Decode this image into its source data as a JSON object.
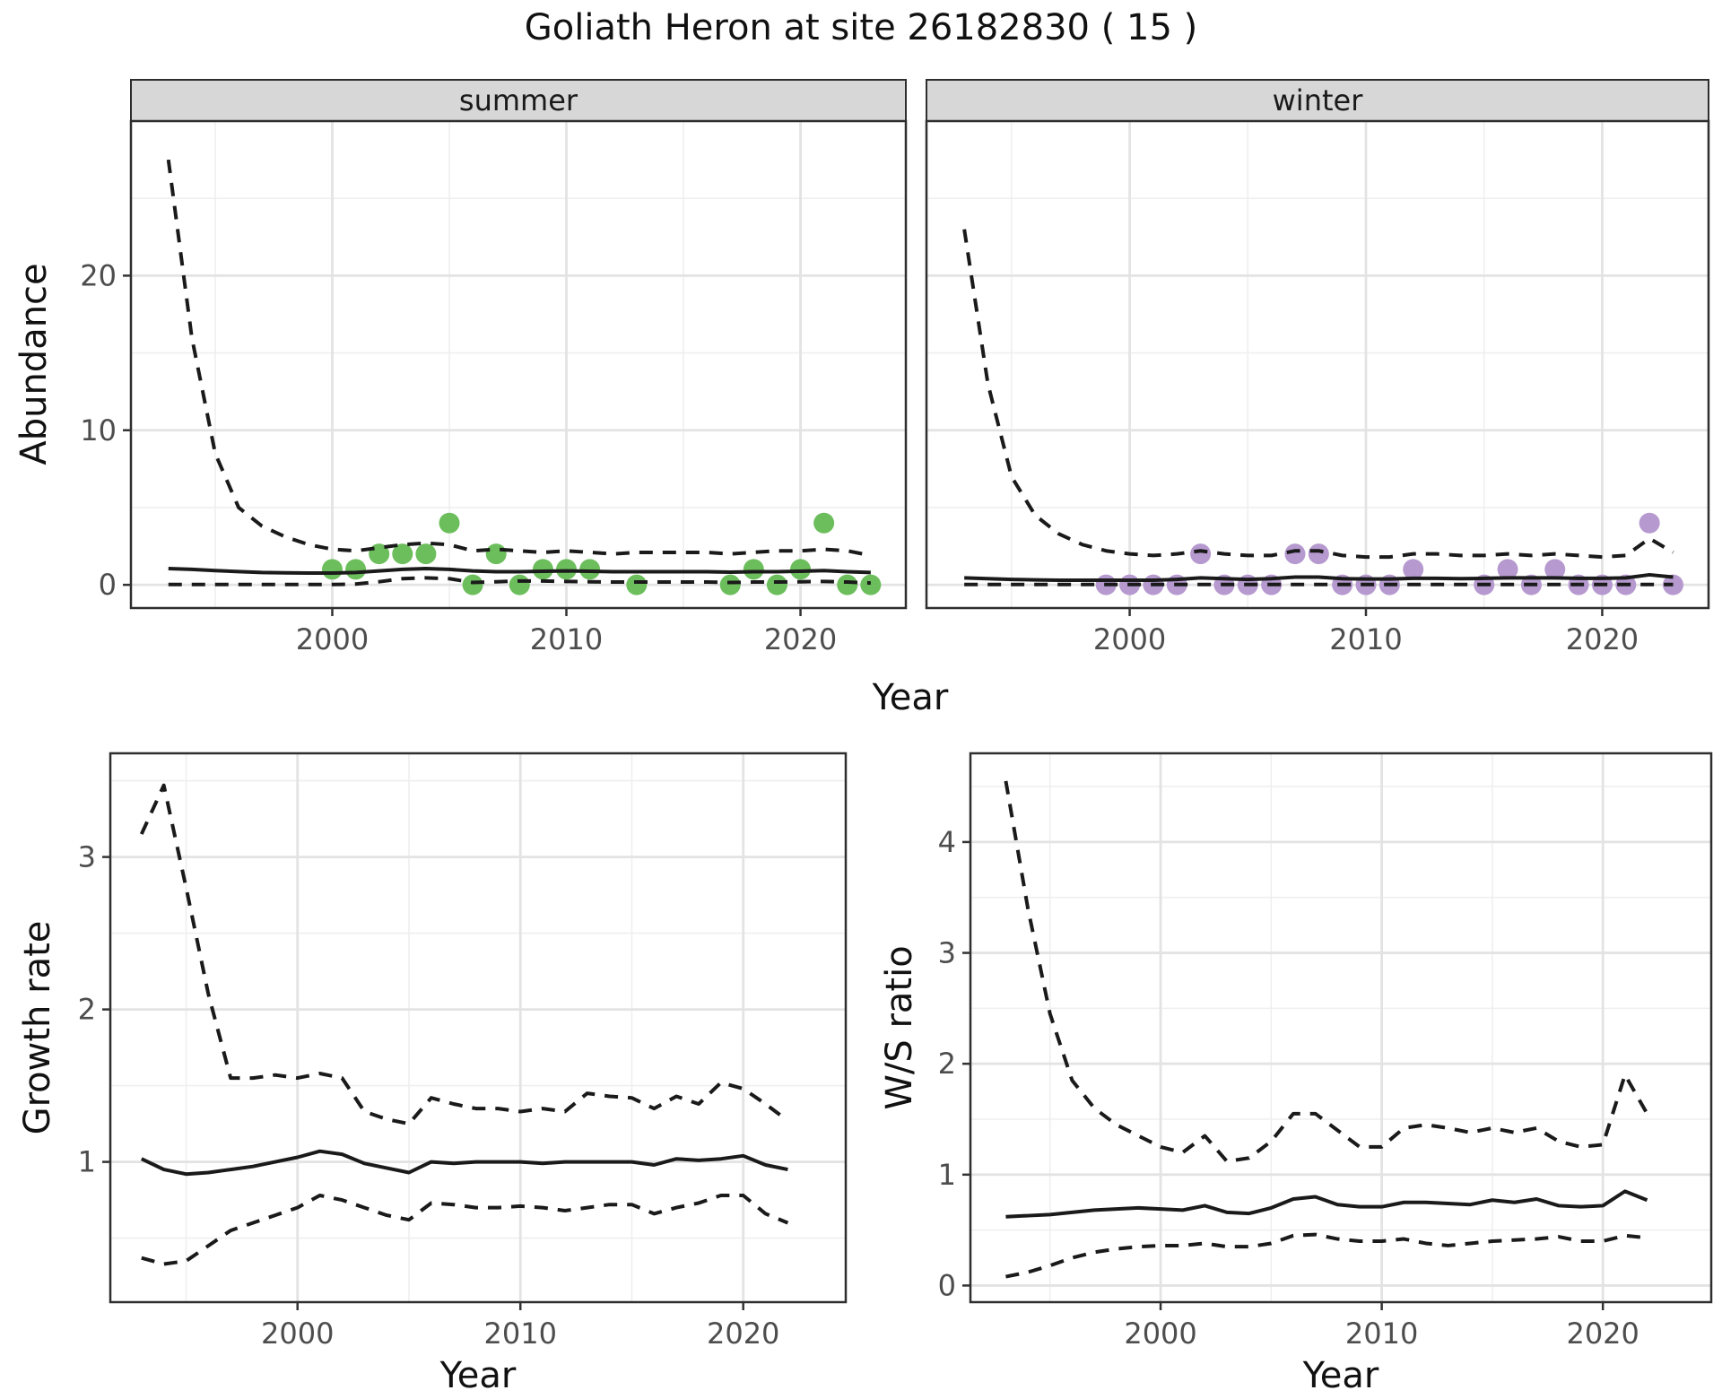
{
  "title": "Goliath Heron at site 26182830 ( 15 )",
  "facets": [
    "summer",
    "winter"
  ],
  "axis_titles": {
    "abundance": "Abundance",
    "year": "Year",
    "growth": "Growth rate",
    "ws": "W/S ratio"
  },
  "colors": {
    "summer_point": "#6cbe5c",
    "winter_point": "#b699cf",
    "line": "#1a1a1a",
    "grid_major": "#e3e3e3",
    "grid_minor": "#efefef",
    "tick_label": "#4d4d4d",
    "tick_mark": "#333333",
    "panel_border": "#2e2e2e",
    "strip_bg": "#d7d7d7"
  },
  "chart_data": [
    {
      "panel": "summer",
      "type": "line+scatter",
      "facet_label": "summer",
      "ylabel": "Abundance",
      "xlabel": "Year",
      "x_domain": [
        1991.4,
        2024.5
      ],
      "y_domain": [
        -1.5,
        30
      ],
      "x_ticks": [
        2000,
        2010,
        2020
      ],
      "x_tick_labels": [
        "2000",
        "2010",
        "2020"
      ],
      "x_minor": [
        1995,
        2005,
        2015
      ],
      "y_ticks": [
        0,
        10,
        20
      ],
      "y_tick_labels": [
        "0",
        "10",
        "20"
      ],
      "y_minor": [
        5,
        15,
        25
      ],
      "show_y_labels": true,
      "points": {
        "color_key": "summer_point",
        "x": [
          2000,
          2001,
          2002,
          2003,
          2004,
          2005,
          2006,
          2007,
          2008,
          2009,
          2010,
          2011,
          2013,
          2017,
          2018,
          2019,
          2020,
          2021,
          2022,
          2023
        ],
        "y": [
          1,
          1,
          2,
          2,
          2,
          4,
          0,
          2,
          0,
          1,
          1,
          1,
          0,
          0,
          1,
          0,
          1,
          4,
          0,
          0
        ]
      },
      "series": {
        "median": {
          "style": "solid",
          "x": [
            1993,
            1994,
            1995,
            1996,
            1997,
            1998,
            1999,
            2000,
            2001,
            2002,
            2003,
            2004,
            2005,
            2006,
            2007,
            2008,
            2009,
            2010,
            2011,
            2012,
            2013,
            2014,
            2015,
            2016,
            2017,
            2018,
            2019,
            2020,
            2021,
            2022,
            2023
          ],
          "y": [
            1.05,
            1.0,
            0.92,
            0.86,
            0.8,
            0.78,
            0.76,
            0.76,
            0.8,
            0.9,
            1.0,
            1.05,
            1.0,
            0.9,
            0.85,
            0.85,
            0.88,
            0.9,
            0.88,
            0.85,
            0.85,
            0.85,
            0.85,
            0.85,
            0.82,
            0.85,
            0.85,
            0.88,
            0.92,
            0.85,
            0.8
          ]
        },
        "upper": {
          "style": "dashed",
          "x": [
            1993,
            1994,
            1995,
            1996,
            1997,
            1998,
            1999,
            2000,
            2001,
            2002,
            2003,
            2004,
            2005,
            2006,
            2007,
            2008,
            2009,
            2010,
            2011,
            2012,
            2013,
            2014,
            2015,
            2016,
            2017,
            2018,
            2019,
            2020,
            2021,
            2022,
            2023
          ],
          "y": [
            27.5,
            16,
            8.5,
            5.0,
            3.8,
            3.1,
            2.6,
            2.3,
            2.2,
            2.4,
            2.6,
            2.7,
            2.6,
            2.2,
            2.3,
            2.2,
            2.1,
            2.2,
            2.1,
            2.0,
            2.1,
            2.1,
            2.1,
            2.1,
            2.0,
            2.1,
            2.2,
            2.2,
            2.3,
            2.2,
            1.9
          ]
        },
        "lower": {
          "style": "dashed",
          "x": [
            1993,
            1994,
            1995,
            1996,
            1997,
            1998,
            1999,
            2000,
            2001,
            2002,
            2003,
            2004,
            2005,
            2006,
            2007,
            2008,
            2009,
            2010,
            2011,
            2012,
            2013,
            2014,
            2015,
            2016,
            2017,
            2018,
            2019,
            2020,
            2021,
            2022,
            2023
          ],
          "y": [
            0.02,
            0.02,
            0.02,
            0.02,
            0.02,
            0.02,
            0.02,
            0.02,
            0.05,
            0.2,
            0.4,
            0.45,
            0.4,
            0.15,
            0.2,
            0.25,
            0.25,
            0.22,
            0.2,
            0.18,
            0.18,
            0.18,
            0.18,
            0.18,
            0.15,
            0.18,
            0.18,
            0.2,
            0.22,
            0.18,
            0.12
          ]
        }
      }
    },
    {
      "panel": "winter",
      "type": "line+scatter",
      "facet_label": "winter",
      "ylabel": "Abundance",
      "xlabel": "Year",
      "x_domain": [
        1991.4,
        2024.5
      ],
      "y_domain": [
        -1.5,
        30
      ],
      "x_ticks": [
        2000,
        2010,
        2020
      ],
      "x_tick_labels": [
        "2000",
        "2010",
        "2020"
      ],
      "x_minor": [
        1995,
        2005,
        2015
      ],
      "y_ticks": [
        0,
        10,
        20
      ],
      "y_tick_labels": [
        "0",
        "10",
        "20"
      ],
      "y_minor": [
        5,
        15,
        25
      ],
      "show_y_labels": false,
      "points": {
        "color_key": "winter_point",
        "x": [
          1999,
          2000,
          2001,
          2002,
          2003,
          2004,
          2005,
          2006,
          2007,
          2008,
          2009,
          2010,
          2011,
          2012,
          2015,
          2016,
          2017,
          2018,
          2019,
          2020,
          2021,
          2022,
          2023
        ],
        "y": [
          0,
          0,
          0,
          0,
          2,
          0,
          0,
          0,
          2,
          2,
          0,
          0,
          0,
          1,
          0,
          1,
          0,
          1,
          0,
          0,
          0,
          4,
          0
        ]
      },
      "series": {
        "median": {
          "style": "solid",
          "x": [
            1993,
            1994,
            1995,
            1996,
            1997,
            1998,
            1999,
            2000,
            2001,
            2002,
            2003,
            2004,
            2005,
            2006,
            2007,
            2008,
            2009,
            2010,
            2011,
            2012,
            2013,
            2014,
            2015,
            2016,
            2017,
            2018,
            2019,
            2020,
            2021,
            2022,
            2023
          ],
          "y": [
            0.45,
            0.4,
            0.35,
            0.32,
            0.3,
            0.3,
            0.3,
            0.3,
            0.3,
            0.35,
            0.45,
            0.4,
            0.35,
            0.4,
            0.5,
            0.5,
            0.4,
            0.38,
            0.38,
            0.42,
            0.42,
            0.4,
            0.42,
            0.45,
            0.45,
            0.45,
            0.42,
            0.42,
            0.45,
            0.65,
            0.5
          ]
        },
        "upper": {
          "style": "dashed",
          "x": [
            1993,
            1994,
            1995,
            1996,
            1997,
            1998,
            1999,
            2000,
            2001,
            2002,
            2003,
            2004,
            2005,
            2006,
            2007,
            2008,
            2009,
            2010,
            2011,
            2012,
            2013,
            2014,
            2015,
            2016,
            2017,
            2018,
            2019,
            2020,
            2021,
            2022,
            2023
          ],
          "y": [
            23,
            13,
            7,
            4.5,
            3.3,
            2.6,
            2.2,
            2.0,
            1.9,
            2.0,
            2.2,
            2.0,
            1.9,
            1.9,
            2.2,
            2.2,
            1.9,
            1.8,
            1.8,
            2.0,
            2.0,
            1.9,
            1.9,
            2.0,
            1.9,
            2.0,
            1.9,
            1.8,
            1.9,
            3.0,
            2.1
          ]
        },
        "lower": {
          "style": "dashed",
          "x": [
            1993,
            1994,
            1995,
            1996,
            1997,
            1998,
            1999,
            2000,
            2001,
            2002,
            2003,
            2004,
            2005,
            2006,
            2007,
            2008,
            2009,
            2010,
            2011,
            2012,
            2013,
            2014,
            2015,
            2016,
            2017,
            2018,
            2019,
            2020,
            2021,
            2022,
            2023
          ],
          "y": [
            0.02,
            0.02,
            0.02,
            0.02,
            0.02,
            0.02,
            0.02,
            0.02,
            0.02,
            0.02,
            0.02,
            0.02,
            0.02,
            0.02,
            0.02,
            0.02,
            0.02,
            0.02,
            0.02,
            0.02,
            0.02,
            0.02,
            0.02,
            0.02,
            0.02,
            0.02,
            0.02,
            0.02,
            0.02,
            0.02,
            0.02
          ]
        }
      }
    },
    {
      "panel": "growth",
      "type": "line",
      "ylabel": "Growth rate",
      "xlabel": "Year",
      "x_domain": [
        1991.6,
        2024.6
      ],
      "y_domain": [
        0.08,
        3.68
      ],
      "x_ticks": [
        2000,
        2010,
        2020
      ],
      "x_tick_labels": [
        "2000",
        "2010",
        "2020"
      ],
      "x_minor": [
        1995,
        2005,
        2015
      ],
      "y_ticks": [
        1,
        2,
        3
      ],
      "y_tick_labels": [
        "1",
        "2",
        "3"
      ],
      "y_minor": [
        0.5,
        1.5,
        2.5,
        3.5
      ],
      "show_y_labels": true,
      "series": {
        "median": {
          "style": "solid",
          "x": [
            1993,
            1994,
            1995,
            1996,
            1997,
            1998,
            1999,
            2000,
            2001,
            2002,
            2003,
            2004,
            2005,
            2006,
            2007,
            2008,
            2009,
            2010,
            2011,
            2012,
            2013,
            2014,
            2015,
            2016,
            2017,
            2018,
            2019,
            2020,
            2021,
            2022
          ],
          "y": [
            1.02,
            0.95,
            0.92,
            0.93,
            0.95,
            0.97,
            1.0,
            1.03,
            1.07,
            1.05,
            0.99,
            0.96,
            0.93,
            1.0,
            0.99,
            1.0,
            1.0,
            1.0,
            0.99,
            1.0,
            1.0,
            1.0,
            1.0,
            0.98,
            1.02,
            1.01,
            1.02,
            1.04,
            0.98,
            0.95
          ]
        },
        "upper": {
          "style": "dashed",
          "x": [
            1993,
            1994,
            1995,
            1996,
            1997,
            1998,
            1999,
            2000,
            2001,
            2002,
            2003,
            2004,
            2005,
            2006,
            2007,
            2008,
            2009,
            2010,
            2011,
            2012,
            2013,
            2014,
            2015,
            2016,
            2017,
            2018,
            2019,
            2020,
            2021,
            2022
          ],
          "y": [
            3.15,
            3.47,
            2.8,
            2.1,
            1.55,
            1.55,
            1.57,
            1.55,
            1.58,
            1.55,
            1.33,
            1.28,
            1.25,
            1.42,
            1.38,
            1.35,
            1.35,
            1.33,
            1.35,
            1.33,
            1.45,
            1.43,
            1.42,
            1.35,
            1.43,
            1.38,
            1.52,
            1.48,
            1.38,
            1.27
          ]
        },
        "lower": {
          "style": "dashed",
          "x": [
            1993,
            1994,
            1995,
            1996,
            1997,
            1998,
            1999,
            2000,
            2001,
            2002,
            2003,
            2004,
            2005,
            2006,
            2007,
            2008,
            2009,
            2010,
            2011,
            2012,
            2013,
            2014,
            2015,
            2016,
            2017,
            2018,
            2019,
            2020,
            2021,
            2022
          ],
          "y": [
            0.37,
            0.33,
            0.35,
            0.45,
            0.55,
            0.6,
            0.65,
            0.7,
            0.78,
            0.75,
            0.7,
            0.65,
            0.62,
            0.73,
            0.72,
            0.7,
            0.7,
            0.71,
            0.7,
            0.68,
            0.7,
            0.72,
            0.72,
            0.66,
            0.7,
            0.73,
            0.78,
            0.78,
            0.66,
            0.6
          ]
        }
      }
    },
    {
      "panel": "ws",
      "type": "line",
      "ylabel": "W/S ratio",
      "xlabel": "Year",
      "x_domain": [
        1991.4,
        2024.9
      ],
      "y_domain": [
        -0.15,
        4.8
      ],
      "x_ticks": [
        2000,
        2010,
        2020
      ],
      "x_tick_labels": [
        "2000",
        "2010",
        "2020"
      ],
      "x_minor": [
        1995,
        2005,
        2015
      ],
      "y_ticks": [
        0,
        1,
        2,
        3,
        4
      ],
      "y_tick_labels": [
        "0",
        "1",
        "2",
        "3",
        "4"
      ],
      "y_minor": [
        0.5,
        1.5,
        2.5,
        3.5,
        4.5
      ],
      "show_y_labels": true,
      "series": {
        "median": {
          "style": "solid",
          "x": [
            1993,
            1994,
            1995,
            1996,
            1997,
            1998,
            1999,
            2000,
            2001,
            2002,
            2003,
            2004,
            2005,
            2006,
            2007,
            2008,
            2009,
            2010,
            2011,
            2012,
            2013,
            2014,
            2015,
            2016,
            2017,
            2018,
            2019,
            2020,
            2021,
            2022
          ],
          "y": [
            0.62,
            0.63,
            0.64,
            0.66,
            0.68,
            0.69,
            0.7,
            0.69,
            0.68,
            0.72,
            0.66,
            0.65,
            0.7,
            0.78,
            0.8,
            0.73,
            0.71,
            0.71,
            0.75,
            0.75,
            0.74,
            0.73,
            0.77,
            0.75,
            0.78,
            0.72,
            0.71,
            0.72,
            0.85,
            0.77
          ]
        },
        "upper": {
          "style": "dashed",
          "x": [
            1993,
            1994,
            1995,
            1996,
            1997,
            1998,
            1999,
            2000,
            2001,
            2002,
            2003,
            2004,
            2005,
            2006,
            2007,
            2008,
            2009,
            2010,
            2011,
            2012,
            2013,
            2014,
            2015,
            2016,
            2017,
            2018,
            2019,
            2020,
            2021,
            2022
          ],
          "y": [
            4.55,
            3.4,
            2.45,
            1.85,
            1.6,
            1.45,
            1.35,
            1.25,
            1.2,
            1.35,
            1.12,
            1.15,
            1.3,
            1.55,
            1.55,
            1.4,
            1.25,
            1.25,
            1.42,
            1.45,
            1.42,
            1.38,
            1.42,
            1.38,
            1.42,
            1.3,
            1.25,
            1.27,
            1.9,
            1.55
          ]
        },
        "lower": {
          "style": "dashed",
          "x": [
            1993,
            1994,
            1995,
            1996,
            1997,
            1998,
            1999,
            2000,
            2001,
            2002,
            2003,
            2004,
            2005,
            2006,
            2007,
            2008,
            2009,
            2010,
            2011,
            2012,
            2013,
            2014,
            2015,
            2016,
            2017,
            2018,
            2019,
            2020,
            2021,
            2022
          ],
          "y": [
            0.08,
            0.12,
            0.18,
            0.25,
            0.3,
            0.33,
            0.35,
            0.36,
            0.36,
            0.38,
            0.35,
            0.35,
            0.38,
            0.45,
            0.46,
            0.42,
            0.4,
            0.4,
            0.42,
            0.38,
            0.36,
            0.38,
            0.4,
            0.41,
            0.42,
            0.44,
            0.4,
            0.4,
            0.45,
            0.43
          ]
        }
      }
    }
  ]
}
